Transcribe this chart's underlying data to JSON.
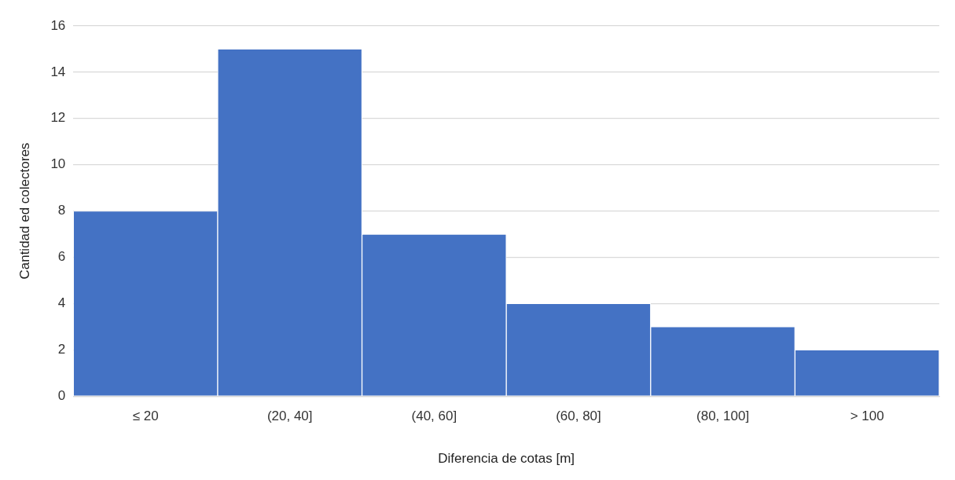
{
  "chart_data": {
    "type": "bar",
    "xlabel": "Diferencia de cotas [m]",
    "ylabel": "Cantidad ed colectores",
    "categories": [
      "≤ 20",
      "(20, 40]",
      "(40, 60]",
      "(60, 80]",
      "(80, 100]",
      "> 100"
    ],
    "values": [
      8,
      15,
      7,
      4,
      3,
      2
    ],
    "color": "#4472c4",
    "ylim": [
      0,
      16
    ],
    "yticks": [
      0,
      2,
      4,
      6,
      8,
      10,
      12,
      14,
      16
    ],
    "grid": "y",
    "legend": false
  }
}
